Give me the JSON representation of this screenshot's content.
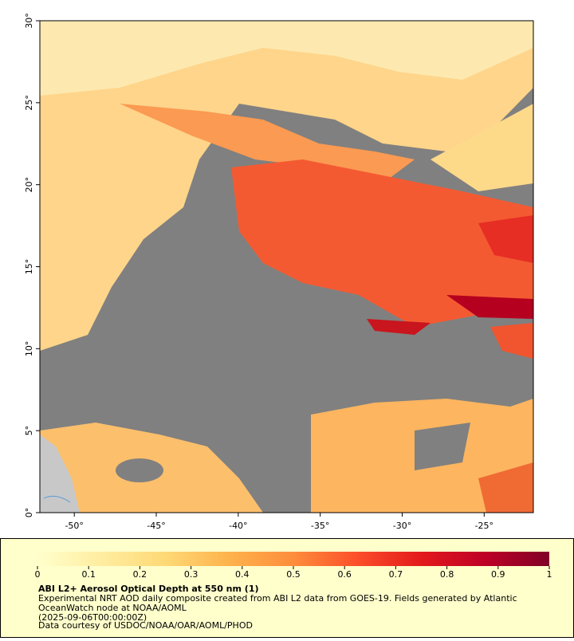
{
  "map": {
    "xlim": [
      -52.1,
      -22
    ],
    "ylim": [
      0,
      30
    ],
    "xticks": [
      {
        "value": -50,
        "label": "-50°"
      },
      {
        "value": -45,
        "label": "-45°"
      },
      {
        "value": -40,
        "label": "-40°"
      },
      {
        "value": -35,
        "label": "-35°"
      },
      {
        "value": -30,
        "label": "-30°"
      },
      {
        "value": -25,
        "label": "-25°"
      }
    ],
    "yticks": [
      {
        "value": 0,
        "label": "0°"
      },
      {
        "value": 5,
        "label": "5°"
      },
      {
        "value": 10,
        "label": "10°"
      },
      {
        "value": 15,
        "label": "15°"
      },
      {
        "value": 20,
        "label": "20°"
      },
      {
        "value": 25,
        "label": "25°"
      },
      {
        "value": 30,
        "label": "30°"
      }
    ],
    "colorbar": {
      "lim": [
        0,
        1
      ],
      "ticks": [
        0,
        0.1,
        0.2,
        0.3,
        0.4,
        0.5,
        0.6,
        0.7,
        0.8,
        0.9,
        1
      ],
      "colors": [
        "#ffffcc",
        "#ffeda0",
        "#fed976",
        "#feb24c",
        "#fd8d3c",
        "#fc4e2a",
        "#e31a1c",
        "#bd0026",
        "#800026"
      ]
    },
    "title": "ABI L2+ Aerosol Optical Depth at 550 nm (1)",
    "description_lines": [
      "Experimental NRT AOD daily composite created from ABI L2 data from GOES-19. Fields generated by Atlantic",
      "OceanWatch node at NOAA/AOML",
      "(2025-09-06T00:00:00Z)",
      "Data courtesy of USDOC/NOAA/OAR/AOML/PHOD"
    ]
  }
}
